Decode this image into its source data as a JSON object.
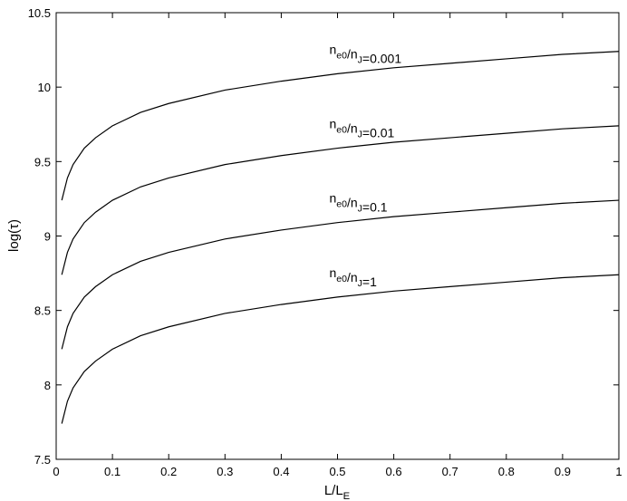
{
  "chart_data": {
    "type": "line",
    "x_label": "L/LE",
    "y_label": "log(τ)",
    "x": [
      0.01,
      0.02,
      0.03,
      0.05,
      0.07,
      0.1,
      0.15,
      0.2,
      0.3,
      0.4,
      0.5,
      0.6,
      0.7,
      0.8,
      0.9,
      1.0
    ],
    "series": [
      {
        "name": "ne0/nJ=0.001",
        "color": "#000000",
        "values": [
          9.24,
          9.39,
          9.48,
          9.59,
          9.66,
          9.74,
          9.83,
          9.89,
          9.98,
          10.04,
          10.09,
          10.13,
          10.16,
          10.19,
          10.22,
          10.24
        ]
      },
      {
        "name": "ne0/nJ=0.01",
        "color": "#000000",
        "values": [
          8.74,
          8.89,
          8.98,
          9.09,
          9.16,
          9.24,
          9.33,
          9.39,
          9.48,
          9.54,
          9.59,
          9.63,
          9.66,
          9.69,
          9.72,
          9.74
        ]
      },
      {
        "name": "ne0/nJ=0.1",
        "color": "#000000",
        "values": [
          8.24,
          8.39,
          8.48,
          8.59,
          8.66,
          8.74,
          8.83,
          8.89,
          8.98,
          9.04,
          9.09,
          9.13,
          9.16,
          9.19,
          9.22,
          9.24
        ]
      },
      {
        "name": "ne0/nJ=1",
        "color": "#000000",
        "values": [
          7.74,
          7.89,
          7.98,
          8.09,
          8.16,
          8.24,
          8.33,
          8.39,
          8.48,
          8.54,
          8.59,
          8.63,
          8.66,
          8.69,
          8.72,
          8.74
        ]
      }
    ],
    "xlim": [
      0,
      1
    ],
    "xticks": [
      0,
      0.1,
      0.2,
      0.3,
      0.4,
      0.5,
      0.6,
      0.7,
      0.8,
      0.9,
      1
    ],
    "ylim": [
      7.5,
      10.5
    ],
    "yticks": [
      7.5,
      8,
      8.5,
      9,
      9.5,
      10,
      10.5
    ],
    "grid": false
  }
}
